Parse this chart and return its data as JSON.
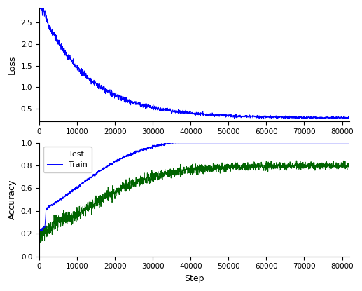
{
  "loss_color": "#0000ff",
  "train_color": "#0000ff",
  "test_color": "#006400",
  "ylabel_loss": "Loss",
  "ylabel_acc": "Accuracy",
  "xlabel": "Step",
  "legend_test": "Test",
  "legend_train": "Train",
  "x_max": 82000,
  "background_color": "#ffffff",
  "fig_width": 5.17,
  "fig_height": 4.15,
  "dpi": 100
}
